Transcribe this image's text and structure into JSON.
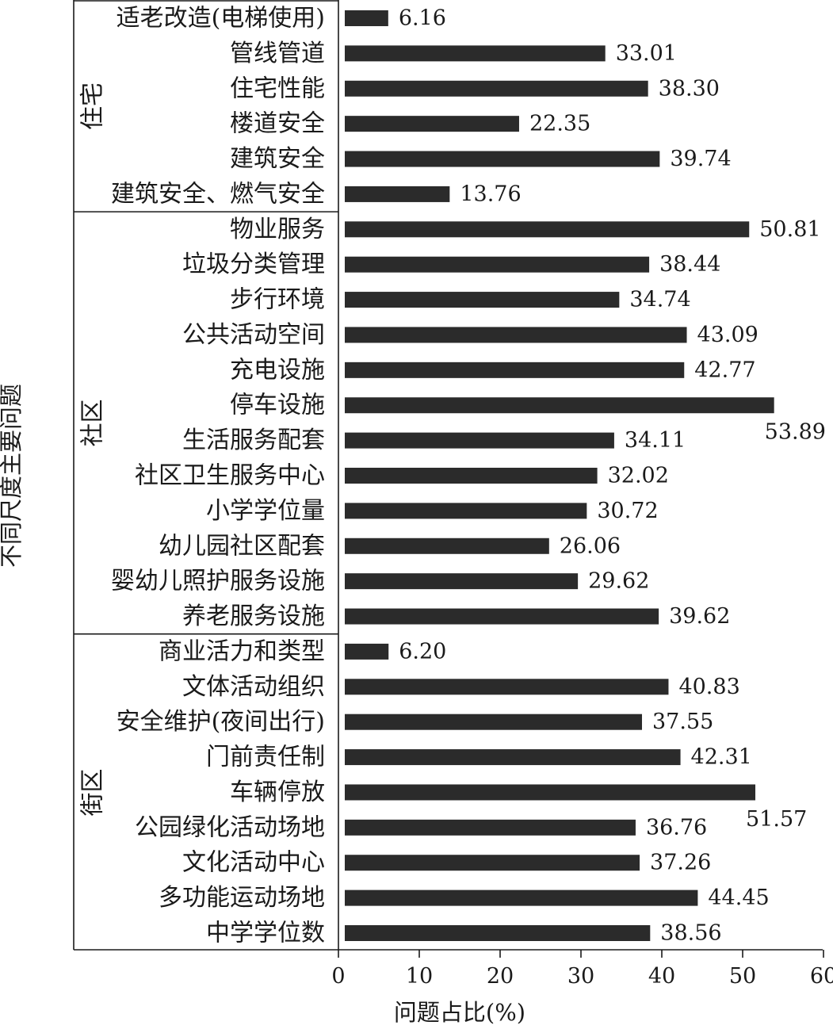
{
  "chart_data": {
    "type": "bar",
    "orientation": "horizontal",
    "xlabel": "问题占比(%)",
    "ylabel": "不同尺度主要问题",
    "xlim": [
      0,
      60
    ],
    "xticks": [
      0,
      10,
      20,
      30,
      40,
      50,
      60
    ],
    "bar_color": "#2b2b2b",
    "groups": [
      {
        "name": "住宅",
        "categories": [
          "适老改造(电梯使用)",
          "管线管道",
          "住宅性能",
          "楼道安全",
          "建筑安全",
          "建筑安全、燃气安全"
        ],
        "values": [
          6.16,
          33.01,
          38.3,
          22.35,
          39.74,
          13.76
        ],
        "labels": [
          "6.16",
          "33.01",
          "38.30",
          "22.35",
          "39.74",
          "13.76"
        ]
      },
      {
        "name": "社区",
        "categories": [
          "物业服务",
          "垃圾分类管理",
          "步行环境",
          "公共活动空间",
          "充电设施",
          "停车设施",
          "生活服务配套",
          "社区卫生服务中心",
          "小学学位量",
          "幼儿园社区配套",
          "婴幼儿照护服务设施",
          "养老服务设施"
        ],
        "values": [
          50.81,
          38.44,
          34.74,
          43.09,
          42.77,
          53.89,
          34.11,
          32.02,
          30.72,
          26.06,
          29.62,
          39.62
        ],
        "labels": [
          "50.81",
          "38.44",
          "34.74",
          "43.09",
          "42.77",
          "53.89",
          "34.11",
          "32.02",
          "30.72",
          "26.06",
          "29.62",
          "39.62"
        ]
      },
      {
        "name": "街区",
        "categories": [
          "商业活力和类型",
          "文体活动组织",
          "安全维护(夜间出行)",
          "门前责任制",
          "车辆停放",
          "公园绿化活动场地",
          "文化活动中心",
          "多功能运动场地",
          "中学学位数"
        ],
        "values": [
          6.2,
          40.83,
          37.55,
          42.31,
          51.57,
          36.76,
          37.26,
          44.45,
          38.56
        ],
        "labels": [
          "6.20",
          "40.83",
          "37.55",
          "42.31",
          "51.57",
          "36.76",
          "37.26",
          "44.45",
          "38.56"
        ]
      }
    ]
  }
}
